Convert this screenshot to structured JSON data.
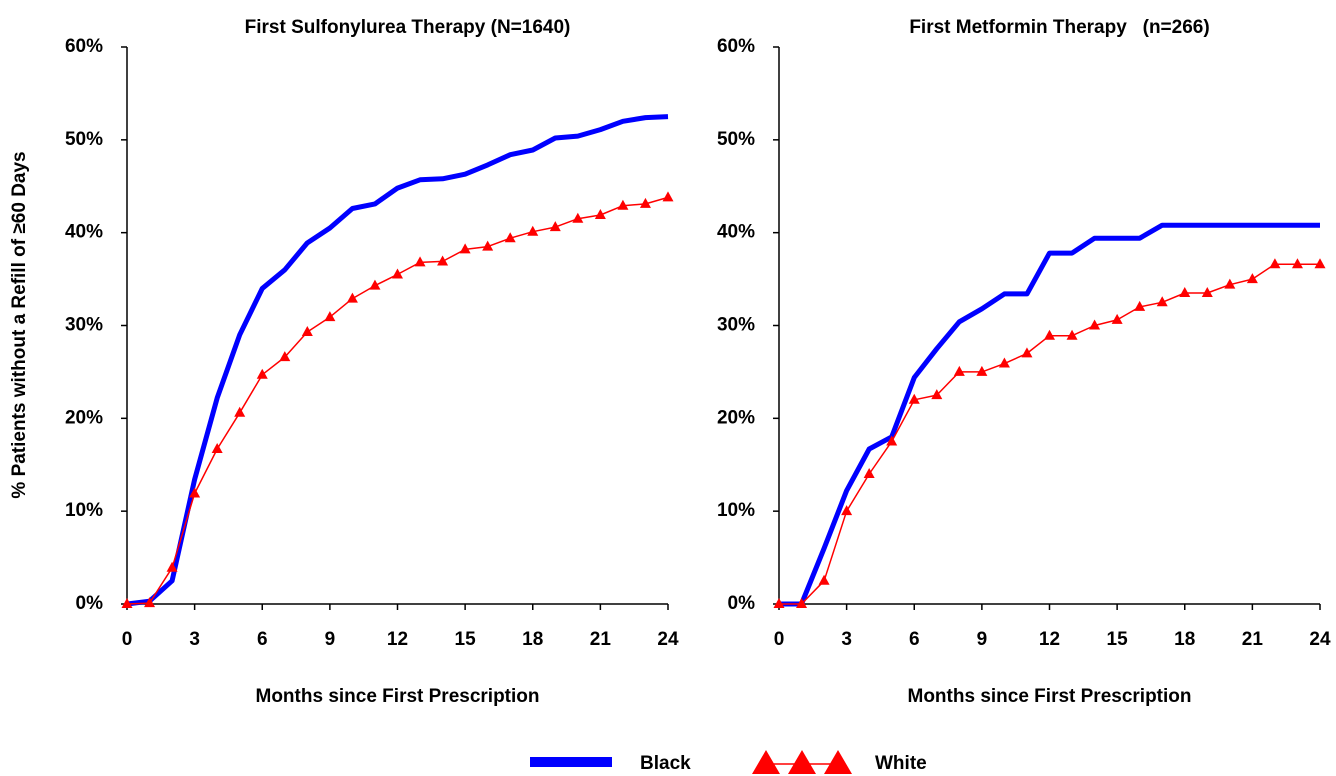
{
  "chart_data": [
    {
      "type": "line",
      "title": "First Sulfonylurea Therapy (N=1640)",
      "x_label": "Months since First Prescription",
      "y_label": "% Patients without a Refill of ≥60 Days",
      "x": [
        0,
        1,
        2,
        3,
        4,
        5,
        6,
        7,
        8,
        9,
        10,
        11,
        12,
        13,
        14,
        15,
        16,
        17,
        18,
        19,
        20,
        21,
        22,
        23,
        24
      ],
      "series": [
        {
          "name": "Black",
          "color": "#0000ff",
          "marker": "none",
          "values": [
            0,
            0.3,
            2.5,
            13.4,
            22.2,
            29,
            34,
            36,
            38.9,
            40.5,
            42.6,
            43.1,
            44.8,
            45.7,
            45.8,
            46.3,
            47.3,
            48.4,
            48.9,
            50.2,
            50.4,
            51.1,
            52,
            52.4,
            52.5
          ]
        },
        {
          "name": "White",
          "color": "#ff0000",
          "marker": "triangle",
          "values": [
            0,
            0.1,
            3.9,
            11.9,
            16.7,
            20.6,
            24.7,
            26.6,
            29.3,
            30.9,
            32.9,
            34.3,
            35.5,
            36.8,
            36.9,
            38.2,
            38.5,
            39.4,
            40.1,
            40.6,
            41.5,
            41.9,
            42.9,
            43.1,
            43.8
          ]
        }
      ],
      "xlim": [
        0,
        24
      ],
      "xticks": [
        0,
        3,
        6,
        9,
        12,
        15,
        18,
        21,
        24
      ],
      "ylim": [
        0,
        60
      ],
      "yticks": [
        {
          "value": 0,
          "label": "0%"
        },
        {
          "value": 10,
          "label": "10%"
        },
        {
          "value": 20,
          "label": "20%"
        },
        {
          "value": 30,
          "label": "30%"
        },
        {
          "value": 40,
          "label": "40%"
        },
        {
          "value": 50,
          "label": "50%"
        },
        {
          "value": 60,
          "label": "60%"
        }
      ]
    },
    {
      "type": "line",
      "title": "First Metformin Therapy   (n=266)",
      "x_label": "Months since First Prescription",
      "x": [
        0,
        1,
        2,
        3,
        4,
        5,
        6,
        7,
        8,
        9,
        10,
        11,
        12,
        13,
        14,
        15,
        16,
        17,
        18,
        19,
        20,
        21,
        22,
        23,
        24
      ],
      "series": [
        {
          "name": "Black",
          "color": "#0000ff",
          "marker": "none",
          "values": [
            0,
            0,
            6,
            12.2,
            16.7,
            18,
            24.4,
            27.5,
            30.4,
            31.8,
            33.4,
            33.4,
            37.8,
            37.8,
            39.4,
            39.4,
            39.4,
            40.8,
            40.8,
            40.8,
            40.8,
            40.8,
            40.8,
            40.8,
            40.8
          ]
        },
        {
          "name": "White",
          "color": "#ff0000",
          "marker": "triangle",
          "values": [
            0,
            0,
            2.5,
            10,
            14,
            17.5,
            22,
            22.5,
            25,
            25,
            25.9,
            27,
            28.9,
            28.9,
            30,
            30.6,
            32,
            32.5,
            33.5,
            33.5,
            34.4,
            35,
            36.6,
            36.6,
            36.6
          ]
        }
      ],
      "xlim": [
        0,
        24
      ],
      "xticks": [
        0,
        3,
        6,
        9,
        12,
        15,
        18,
        21,
        24
      ],
      "ylim": [
        0,
        60
      ],
      "yticks": [
        {
          "value": 0,
          "label": "0%"
        },
        {
          "value": 10,
          "label": "10%"
        },
        {
          "value": 20,
          "label": "20%"
        },
        {
          "value": 30,
          "label": "30%"
        },
        {
          "value": 40,
          "label": "40%"
        },
        {
          "value": 50,
          "label": "50%"
        },
        {
          "value": 60,
          "label": "60%"
        }
      ]
    }
  ]
}
